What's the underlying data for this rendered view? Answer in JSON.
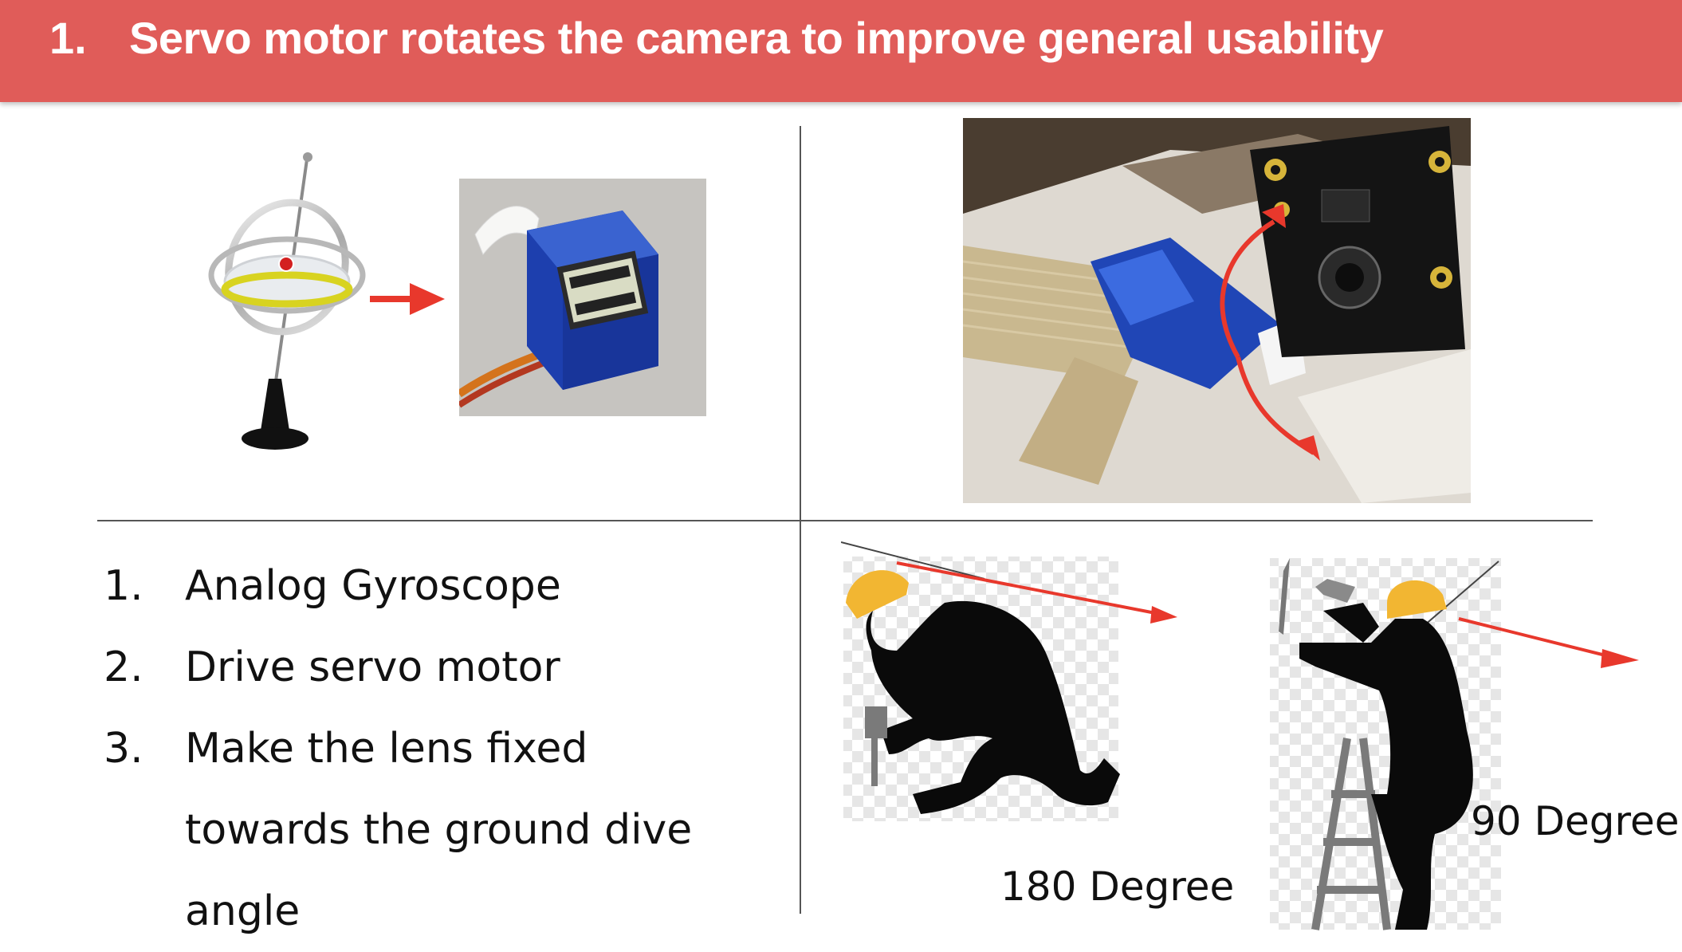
{
  "header": {
    "number": "1.",
    "title": "Servo motor rotates the camera to improve general usability"
  },
  "steps": [
    {
      "num": "1.",
      "text": "Analog Gyroscope"
    },
    {
      "num": "2.",
      "text": "Drive servo motor"
    },
    {
      "num": "3.",
      "text": "Make the lens fixed towards the ground dive angle"
    }
  ],
  "labels": {
    "deg180": "180 Degree",
    "deg90": "90 Degree"
  },
  "colors": {
    "header": "#e05c59",
    "arrow": "#e8382c",
    "servo": "#1d3fae",
    "helmet": "#f2b632"
  },
  "icons": [
    "gyroscope-icon",
    "arrow-right-icon",
    "servo-motor-icon",
    "camera-servo-photo",
    "worker-kneeling-icon",
    "worker-ladder-icon"
  ]
}
